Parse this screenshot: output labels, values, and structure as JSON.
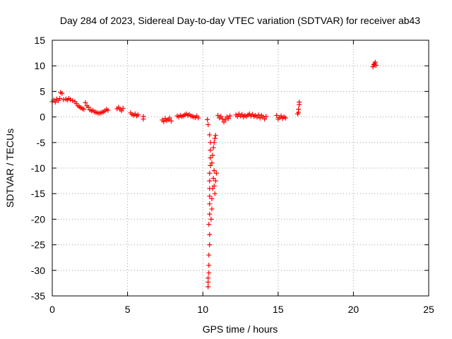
{
  "chart_data": {
    "type": "scatter",
    "title": "Day 284 of 2023, Sidereal Day-to-day VTEC variation (SDTVAR) for receiver ab43",
    "xlabel": "GPS time / hours",
    "ylabel": "SDTVAR / TECUs",
    "xlim": [
      0,
      25
    ],
    "ylim": [
      -35,
      15
    ],
    "xticks": [
      0,
      5,
      10,
      15,
      20,
      25
    ],
    "yticks": [
      15,
      10,
      5,
      0,
      -5,
      -10,
      -15,
      -20,
      -25,
      -30,
      -35
    ],
    "grid": true,
    "marker": "+",
    "color": "#ff0000",
    "series": [
      {
        "name": "SDTVAR",
        "points": [
          [
            0.0,
            3.0
          ],
          [
            0.1,
            3.3
          ],
          [
            0.2,
            2.9
          ],
          [
            0.3,
            3.5
          ],
          [
            0.4,
            3.2
          ],
          [
            0.5,
            3.6
          ],
          [
            0.55,
            4.8
          ],
          [
            0.65,
            4.6
          ],
          [
            0.75,
            3.4
          ],
          [
            0.9,
            3.5
          ],
          [
            1.0,
            3.3
          ],
          [
            1.1,
            3.6
          ],
          [
            1.2,
            3.4
          ],
          [
            1.35,
            3.2
          ],
          [
            1.5,
            3.0
          ],
          [
            1.6,
            2.6
          ],
          [
            1.7,
            2.2
          ],
          [
            1.8,
            2.0
          ],
          [
            1.9,
            1.8
          ],
          [
            2.0,
            1.6
          ],
          [
            2.1,
            1.5
          ],
          [
            2.2,
            2.8
          ],
          [
            2.3,
            2.2
          ],
          [
            2.4,
            1.9
          ],
          [
            2.5,
            1.4
          ],
          [
            2.6,
            1.2
          ],
          [
            2.7,
            1.3
          ],
          [
            2.8,
            1.0
          ],
          [
            2.9,
            0.9
          ],
          [
            3.0,
            0.8
          ],
          [
            3.1,
            0.7
          ],
          [
            3.2,
            0.8
          ],
          [
            3.3,
            0.9
          ],
          [
            3.4,
            1.0
          ],
          [
            3.5,
            1.2
          ],
          [
            3.6,
            1.5
          ],
          [
            3.7,
            1.3
          ],
          [
            4.3,
            1.6
          ],
          [
            4.4,
            1.9
          ],
          [
            4.5,
            1.5
          ],
          [
            4.6,
            1.2
          ],
          [
            4.7,
            1.7
          ],
          [
            5.2,
            0.8
          ],
          [
            5.3,
            0.5
          ],
          [
            5.4,
            0.3
          ],
          [
            5.5,
            0.6
          ],
          [
            5.6,
            0.2
          ],
          [
            5.7,
            0.4
          ],
          [
            6.05,
            0.1
          ],
          [
            6.05,
            -0.4
          ],
          [
            7.3,
            -0.6
          ],
          [
            7.4,
            -0.9
          ],
          [
            7.5,
            -0.3
          ],
          [
            7.6,
            -0.7
          ],
          [
            7.7,
            -0.5
          ],
          [
            7.8,
            -0.2
          ],
          [
            7.9,
            -0.8
          ],
          [
            8.3,
            0.2
          ],
          [
            8.4,
            0.0
          ],
          [
            8.5,
            0.3
          ],
          [
            8.6,
            0.1
          ],
          [
            8.7,
            0.2
          ],
          [
            8.8,
            0.4
          ],
          [
            8.9,
            0.6
          ],
          [
            9.0,
            0.3
          ],
          [
            9.1,
            0.5
          ],
          [
            9.2,
            0.2
          ],
          [
            9.3,
            0.1
          ],
          [
            9.4,
            0.0
          ],
          [
            9.5,
            -0.1
          ],
          [
            9.6,
            0.2
          ],
          [
            9.7,
            -0.2
          ],
          [
            10.3,
            -0.5
          ],
          [
            10.35,
            -1.5
          ],
          [
            10.45,
            -3.5
          ],
          [
            10.5,
            -5.0
          ],
          [
            10.5,
            -6.5
          ],
          [
            10.5,
            -8.0
          ],
          [
            10.5,
            -9.5
          ],
          [
            10.45,
            -11.0
          ],
          [
            10.45,
            -12.5
          ],
          [
            10.45,
            -14.0
          ],
          [
            10.45,
            -15.5
          ],
          [
            10.45,
            -17.0
          ],
          [
            10.45,
            -19.0
          ],
          [
            10.4,
            -21.0
          ],
          [
            10.45,
            -23.0
          ],
          [
            10.45,
            -25.0
          ],
          [
            10.4,
            -27.0
          ],
          [
            10.4,
            -29.0
          ],
          [
            10.4,
            -30.5
          ],
          [
            10.35,
            -31.5
          ],
          [
            10.35,
            -32.3
          ],
          [
            10.35,
            -33.2
          ],
          [
            10.55,
            -20.0
          ],
          [
            10.6,
            -18.0
          ],
          [
            10.6,
            -16.0
          ],
          [
            10.65,
            -14.0
          ],
          [
            10.7,
            -12.0
          ],
          [
            10.75,
            -10.5
          ],
          [
            10.6,
            -9.0
          ],
          [
            10.65,
            -7.5
          ],
          [
            10.7,
            -6.0
          ],
          [
            10.75,
            -5.0
          ],
          [
            10.8,
            -4.2
          ],
          [
            10.85,
            -3.6
          ],
          [
            10.85,
            -12.5
          ],
          [
            10.9,
            -11.0
          ],
          [
            10.75,
            -13.5
          ],
          [
            10.8,
            -15.0
          ],
          [
            11.0,
            0.3
          ],
          [
            11.1,
            -0.2
          ],
          [
            11.2,
            0.1
          ],
          [
            11.3,
            -0.4
          ],
          [
            11.4,
            -1.0
          ],
          [
            11.5,
            -0.6
          ],
          [
            11.6,
            0.0
          ],
          [
            11.7,
            -0.3
          ],
          [
            11.8,
            0.2
          ],
          [
            12.2,
            0.4
          ],
          [
            12.3,
            0.1
          ],
          [
            12.4,
            0.6
          ],
          [
            12.5,
            0.2
          ],
          [
            12.6,
            0.5
          ],
          [
            12.7,
            0.0
          ],
          [
            12.8,
            0.3
          ],
          [
            12.9,
            0.1
          ],
          [
            13.0,
            0.4
          ],
          [
            13.1,
            0.6
          ],
          [
            13.2,
            0.2
          ],
          [
            13.3,
            0.5
          ],
          [
            13.4,
            0.1
          ],
          [
            13.5,
            0.3
          ],
          [
            13.6,
            0.0
          ],
          [
            13.7,
            0.4
          ],
          [
            13.8,
            -0.2
          ],
          [
            13.9,
            0.3
          ],
          [
            14.0,
            0.0
          ],
          [
            14.1,
            -0.4
          ],
          [
            14.2,
            0.1
          ],
          [
            14.9,
            0.3
          ],
          [
            15.0,
            -0.4
          ],
          [
            15.1,
            -0.1
          ],
          [
            15.2,
            0.2
          ],
          [
            15.3,
            -0.3
          ],
          [
            15.4,
            0.0
          ],
          [
            15.5,
            -0.2
          ],
          [
            16.3,
            0.6
          ],
          [
            16.35,
            1.5
          ],
          [
            16.4,
            2.4
          ],
          [
            16.4,
            2.9
          ],
          [
            16.35,
            0.9
          ],
          [
            21.3,
            9.8
          ],
          [
            21.35,
            10.2
          ],
          [
            21.4,
            10.4
          ],
          [
            21.45,
            10.7
          ],
          [
            21.5,
            10.1
          ]
        ]
      }
    ]
  }
}
